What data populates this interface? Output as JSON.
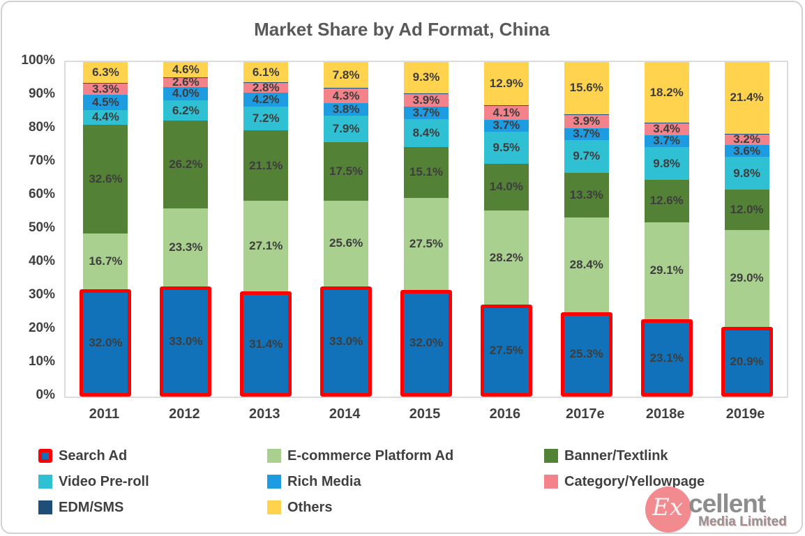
{
  "chart_data": {
    "type": "bar",
    "stacked": true,
    "title": "Market Share by Ad Format, China",
    "categories": [
      "2011",
      "2012",
      "2013",
      "2014",
      "2015",
      "2016",
      "2017e",
      "2018e",
      "2019e"
    ],
    "series": [
      {
        "name": "Search Ad",
        "color": "#1172ba",
        "border_color": "#fe0000",
        "values": [
          32.0,
          33.0,
          31.4,
          33.0,
          32.0,
          27.5,
          25.3,
          23.1,
          20.9
        ]
      },
      {
        "name": "E-commerce Platform Ad",
        "color": "#a9d08e",
        "values": [
          16.7,
          23.3,
          27.1,
          25.6,
          27.5,
          28.2,
          28.4,
          29.1,
          29.0
        ]
      },
      {
        "name": "Banner/Textlink",
        "color": "#538135",
        "values": [
          32.6,
          26.2,
          21.1,
          17.5,
          15.1,
          14.0,
          13.3,
          12.6,
          12.0
        ]
      },
      {
        "name": "Video Pre-roll",
        "color": "#30c0d4",
        "values": [
          4.4,
          6.2,
          7.2,
          7.9,
          8.4,
          9.5,
          9.7,
          9.8,
          9.8
        ]
      },
      {
        "name": "Rich Media",
        "color": "#1e9ce2",
        "values": [
          4.5,
          4.0,
          4.2,
          3.8,
          3.7,
          3.7,
          3.7,
          3.7,
          3.6
        ]
      },
      {
        "name": "Category/Yellowpage",
        "color": "#f4828a",
        "values": [
          3.3,
          2.6,
          2.8,
          4.3,
          3.9,
          4.1,
          3.9,
          3.4,
          3.2
        ]
      },
      {
        "name": "EDM/SMS",
        "color": "#1f4e79",
        "show_labels": false,
        "values": [
          0.2,
          0.1,
          0.1,
          0.1,
          0.1,
          0.1,
          0.1,
          0.1,
          0.1
        ]
      },
      {
        "name": "Others",
        "color": "#ffd34d",
        "values": [
          6.3,
          4.6,
          6.1,
          7.8,
          9.3,
          12.9,
          15.6,
          18.2,
          21.4
        ]
      }
    ],
    "y_ticks": [
      "100%",
      "90%",
      "80%",
      "70%",
      "60%",
      "50%",
      "40%",
      "30%",
      "20%",
      "10%",
      "0%"
    ],
    "ylim": [
      0,
      100
    ],
    "grid": false,
    "legend_position": "bottom",
    "label_suffix": "%"
  },
  "logo": {
    "circle_text": "Ex",
    "main_text": "cellent",
    "sub_text": "Media Limited",
    "circle_color": "#f28b90"
  }
}
